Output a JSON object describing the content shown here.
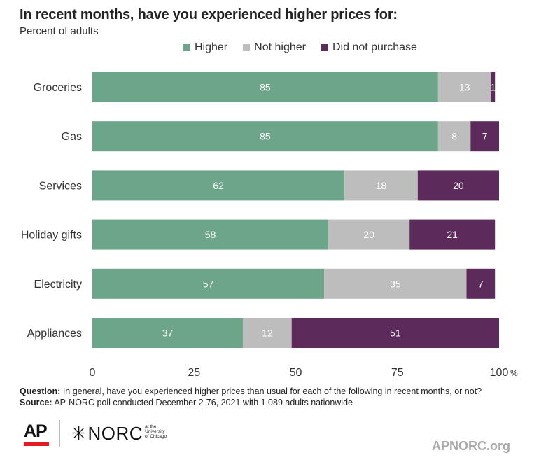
{
  "chart_data": {
    "type": "bar",
    "orientation": "horizontal",
    "stacked": true,
    "title": "In recent months, have you experienced higher prices for:",
    "subtitle": "Percent of adults",
    "categories": [
      "Groceries",
      "Gas",
      "Services",
      "Holiday gifts",
      "Electricity",
      "Appliances"
    ],
    "series": [
      {
        "name": "Higher",
        "values": [
          85,
          85,
          62,
          58,
          57,
          37
        ],
        "color": "#6da58a"
      },
      {
        "name": "Not higher",
        "values": [
          13,
          8,
          18,
          20,
          35,
          12
        ],
        "color": "#bdbdbd"
      },
      {
        "name": "Did not purchase",
        "values": [
          1,
          7,
          20,
          21,
          7,
          51
        ],
        "color": "#5c2b5c"
      }
    ],
    "xlim": [
      0,
      100
    ],
    "xticks": [
      "0",
      "25",
      "50",
      "75",
      "100"
    ],
    "xunit": "%",
    "legend_position": "top"
  },
  "footnote": {
    "question_label": "Question:",
    "question_text": "In general, have you experienced higher prices than usual for each of the following in recent months, or not?",
    "source_label": "Source:",
    "source_text": "AP-NORC poll conducted December 2-76, 2021 with 1,089 adults nationwide"
  },
  "logos": {
    "ap": "AP",
    "norc": "NORC",
    "norc_sub": "at the University of Chicago"
  },
  "site": "APNORC.org"
}
